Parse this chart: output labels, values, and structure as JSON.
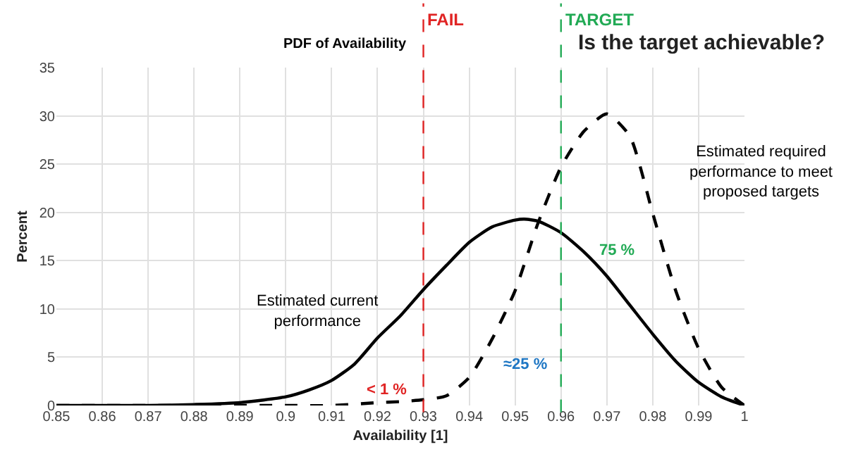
{
  "chart_data": {
    "type": "line",
    "title": "PDF of Availability",
    "subtitle": "Is the target achievable?",
    "xlabel": "Availability [1]",
    "ylabel": "Percent",
    "series": [
      {
        "color": "#000000",
        "line_style": "solid",
        "x": [
          0.85,
          0.86,
          0.87,
          0.88,
          0.89,
          0.9,
          0.905,
          0.91,
          0.915,
          0.92,
          0.925,
          0.93,
          0.935,
          0.94,
          0.945,
          0.95,
          0.952,
          0.955,
          0.96,
          0.965,
          0.97,
          0.975,
          0.98,
          0.985,
          0.99,
          0.995,
          1.0
        ],
        "values": [
          0,
          0,
          0,
          0.1,
          0.3,
          0.9,
          1.6,
          2.6,
          4.3,
          7.0,
          9.3,
          12.0,
          14.5,
          16.9,
          18.5,
          19.2,
          19.3,
          19.1,
          17.9,
          15.9,
          13.4,
          10.4,
          7.4,
          4.6,
          2.4,
          0.9,
          0
        ]
      },
      {
        "color": "#000000",
        "line_style": "dashed",
        "x": [
          0.85,
          0.88,
          0.9,
          0.91,
          0.92,
          0.925,
          0.93,
          0.935,
          0.94,
          0.945,
          0.95,
          0.955,
          0.96,
          0.965,
          0.97,
          0.975,
          0.98,
          0.985,
          0.99,
          0.995,
          1.0
        ],
        "values": [
          0,
          0,
          0,
          0,
          0.3,
          0.4,
          0.6,
          1.0,
          2.9,
          6.9,
          11.9,
          18.9,
          24.7,
          28.4,
          30.2,
          27.9,
          19.9,
          11.9,
          5.9,
          1.9,
          0
        ]
      }
    ],
    "xlim": [
      0.85,
      1.0
    ],
    "xticks": [
      0.85,
      0.86,
      0.87,
      0.88,
      0.89,
      0.9,
      0.91,
      0.92,
      0.93,
      0.94,
      0.95,
      0.96,
      0.97,
      0.98,
      0.99,
      {
        "value": 1.0,
        "label": "1"
      }
    ],
    "ylim": [
      0,
      35
    ],
    "yticks": [
      0,
      5,
      10,
      15,
      20,
      25,
      30,
      35
    ],
    "grid": true,
    "marker": "none",
    "ref_lines": [
      {
        "axis": "x",
        "value": 0.93,
        "label": "FAIL",
        "color": "#e02424",
        "line_style": "dashed"
      },
      {
        "axis": "x",
        "value": 0.96,
        "label": "TARGET",
        "color": "#22aa55",
        "line_style": "dashed"
      }
    ],
    "annotations": [
      "Estimated current\nperformance",
      "Estimated required\nperformance to meet\nproposed targets",
      "75 %",
      "≈25 %",
      "< 1 %"
    ]
  }
}
